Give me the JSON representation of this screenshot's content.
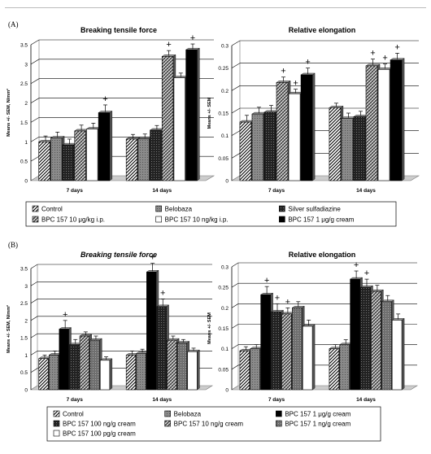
{
  "figure": {
    "panel_a_tag": "(A)",
    "panel_b_tag": "(B)"
  },
  "chart_data": [
    {
      "type": "bar",
      "panel": "A",
      "title": "Breaking tensile force",
      "ylabel": "Means +/- SEM, N/mm²",
      "xlabel": "",
      "categories": [
        "7 days",
        "14 days"
      ],
      "ylim": [
        0,
        3.5
      ],
      "yticks": [
        "0",
        "0.5",
        "1",
        "1.5",
        "2",
        "2.5",
        "3",
        "3.5"
      ],
      "grid": "horizontal",
      "series": [
        {
          "name": "Control",
          "values": [
            1.0,
            1.07
          ],
          "errors": [
            0.15,
            0.12
          ],
          "plus": [
            false,
            false
          ]
        },
        {
          "name": "Belobaza",
          "values": [
            1.1,
            1.08
          ],
          "errors": [
            0.15,
            0.12
          ],
          "plus": [
            false,
            false
          ]
        },
        {
          "name": "Silver sulfadiazine",
          "values": [
            0.92,
            1.3
          ],
          "errors": [
            0.15,
            0.12
          ],
          "plus": [
            false,
            false
          ]
        },
        {
          "name": "BPC 157 10 μg/kg i.p.",
          "values": [
            1.28,
            3.2
          ],
          "errors": [
            0.15,
            0.15
          ],
          "plus": [
            false,
            true
          ]
        },
        {
          "name": "BPC 157 10 ng/kg i.p.",
          "values": [
            1.33,
            2.65
          ],
          "errors": [
            0.15,
            0.12
          ],
          "plus": [
            false,
            false
          ]
        },
        {
          "name": "BPC 157 1 μg/g cream",
          "values": [
            1.75,
            3.37
          ],
          "errors": [
            0.2,
            0.15
          ],
          "plus": [
            true,
            true
          ]
        }
      ]
    },
    {
      "type": "bar",
      "panel": "A",
      "title": "Relative elongation",
      "ylabel": "Means +/- SEM",
      "xlabel": "",
      "categories": [
        "7 days",
        "14 days"
      ],
      "ylim": [
        0,
        0.3
      ],
      "yticks": [
        "0",
        "0.05",
        "0.1",
        "0.15",
        "0.2",
        "0.25",
        "0.3"
      ],
      "grid": "horizontal",
      "series": [
        {
          "name": "Control",
          "values": [
            0.13,
            0.162
          ],
          "errors": [
            0.015,
            0.01
          ],
          "plus": [
            false,
            false
          ]
        },
        {
          "name": "Belobaza",
          "values": [
            0.148,
            0.138
          ],
          "errors": [
            0.015,
            0.012
          ],
          "plus": [
            false,
            false
          ]
        },
        {
          "name": "Silver sulfadiazine",
          "values": [
            0.152,
            0.142
          ],
          "errors": [
            0.015,
            0.012
          ],
          "plus": [
            false,
            false
          ]
        },
        {
          "name": "BPC 157 10 μg/kg i.p.",
          "values": [
            0.218,
            0.255
          ],
          "errors": [
            0.012,
            0.015
          ],
          "plus": [
            true,
            true
          ]
        },
        {
          "name": "BPC 157 10 ng/kg i.p.",
          "values": [
            0.193,
            0.247
          ],
          "errors": [
            0.01,
            0.012
          ],
          "plus": [
            true,
            true
          ]
        },
        {
          "name": "BPC 157 1 μg/g cream",
          "values": [
            0.235,
            0.268
          ],
          "errors": [
            0.015,
            0.015
          ],
          "plus": [
            true,
            true
          ]
        }
      ]
    },
    {
      "type": "bar",
      "panel": "B",
      "title": "Breaking tensile force",
      "ylabel": "Means +/- SEM, N/mm²",
      "xlabel": "",
      "categories": [
        "7 days",
        "14 days"
      ],
      "ylim": [
        0,
        3.5
      ],
      "yticks": [
        "0",
        "0.5",
        "1",
        "1.5",
        "2",
        "2.5",
        "3",
        "3.5"
      ],
      "grid": "horizontal",
      "series": [
        {
          "name": "Control",
          "values": [
            0.9,
            1.0
          ],
          "errors": [
            0.1,
            0.12
          ],
          "plus": [
            false,
            false
          ]
        },
        {
          "name": "Belobaza",
          "values": [
            1.0,
            1.05
          ],
          "errors": [
            0.12,
            0.12
          ],
          "plus": [
            false,
            false
          ]
        },
        {
          "name": "BPC 157 1 μg/g cream",
          "values": [
            1.75,
            3.4
          ],
          "errors": [
            0.25,
            0.25
          ],
          "plus": [
            true,
            true
          ]
        },
        {
          "name": "BPC 157 100 ng/g cream",
          "values": [
            1.3,
            2.4
          ],
          "errors": [
            0.15,
            0.22
          ],
          "plus": [
            false,
            true
          ]
        },
        {
          "name": "BPC 157 10 ng/g cream",
          "values": [
            1.55,
            1.43
          ],
          "errors": [
            0.12,
            0.12
          ],
          "plus": [
            false,
            false
          ]
        },
        {
          "name": "BPC 157 1 ng/g cream",
          "values": [
            1.43,
            1.35
          ],
          "errors": [
            0.12,
            0.1
          ],
          "plus": [
            false,
            false
          ]
        },
        {
          "name": "BPC 157 100 pg/g cream",
          "values": [
            0.85,
            1.1
          ],
          "errors": [
            0.1,
            0.1
          ],
          "plus": [
            false,
            false
          ]
        }
      ]
    },
    {
      "type": "bar",
      "panel": "B",
      "title": "Relative elongation",
      "ylabel": "Means +/- SEM",
      "xlabel": "",
      "categories": [
        "7 days",
        "14 days"
      ],
      "ylim": [
        0,
        0.3
      ],
      "yticks": [
        "0",
        "0.05",
        "0.1",
        "0.15",
        "0.2",
        "0.25",
        "0.3"
      ],
      "grid": "horizontal",
      "series": [
        {
          "name": "Control",
          "values": [
            0.095,
            0.1
          ],
          "errors": [
            0.01,
            0.01
          ],
          "plus": [
            false,
            false
          ]
        },
        {
          "name": "Belobaza",
          "values": [
            0.1,
            0.11
          ],
          "errors": [
            0.01,
            0.012
          ],
          "plus": [
            false,
            false
          ]
        },
        {
          "name": "BPC 157 1 μg/g cream",
          "values": [
            0.232,
            0.27
          ],
          "errors": [
            0.02,
            0.02
          ],
          "plus": [
            true,
            true
          ]
        },
        {
          "name": "BPC 157 100 ng/g cream",
          "values": [
            0.19,
            0.25
          ],
          "errors": [
            0.02,
            0.02
          ],
          "plus": [
            true,
            true
          ]
        },
        {
          "name": "BPC 157 10 ng/g cream",
          "values": [
            0.185,
            0.24
          ],
          "errors": [
            0.015,
            0.015
          ],
          "plus": [
            true,
            false
          ]
        },
        {
          "name": "BPC 157 1 ng/g cream",
          "values": [
            0.2,
            0.215
          ],
          "errors": [
            0.015,
            0.015
          ],
          "plus": [
            false,
            false
          ]
        },
        {
          "name": "BPC 157 100 pg/g cream",
          "values": [
            0.155,
            0.17
          ],
          "errors": [
            0.015,
            0.015
          ],
          "plus": [
            false,
            false
          ]
        }
      ]
    }
  ],
  "legend_a": [
    "Control",
    "Belobaza",
    "Silver sulfadiazine",
    "BPC 157 10 μg/kg i.p.",
    "BPC 157 10 ng/kg i.p.",
    "BPC 157 1 μg/g cream"
  ],
  "legend_b": [
    "Control",
    "Belobaza",
    "BPC 157 1 μg/g cream",
    "BPC 157 100 ng/g cream",
    "BPC 157 10 ng/g cream",
    "BPC 157 1 ng/g cream",
    "BPC 157 100 pg/g cream"
  ],
  "fills": {
    "Control": "diag",
    "Belobaza": "gray",
    "Silver sulfadiazine": "dark",
    "BPC 157 10 μg/kg i.p.": "check",
    "BPC 157 10 ng/kg i.p.": "white",
    "BPC 157 1 μg/g cream": "black",
    "BPC 157 100 ng/g cream": "dark",
    "BPC 157 10 ng/g cream": "check",
    "BPC 157 1 ng/g cream": "gray2",
    "BPC 157 100 pg/g cream": "white"
  },
  "plus_glyph": "+"
}
